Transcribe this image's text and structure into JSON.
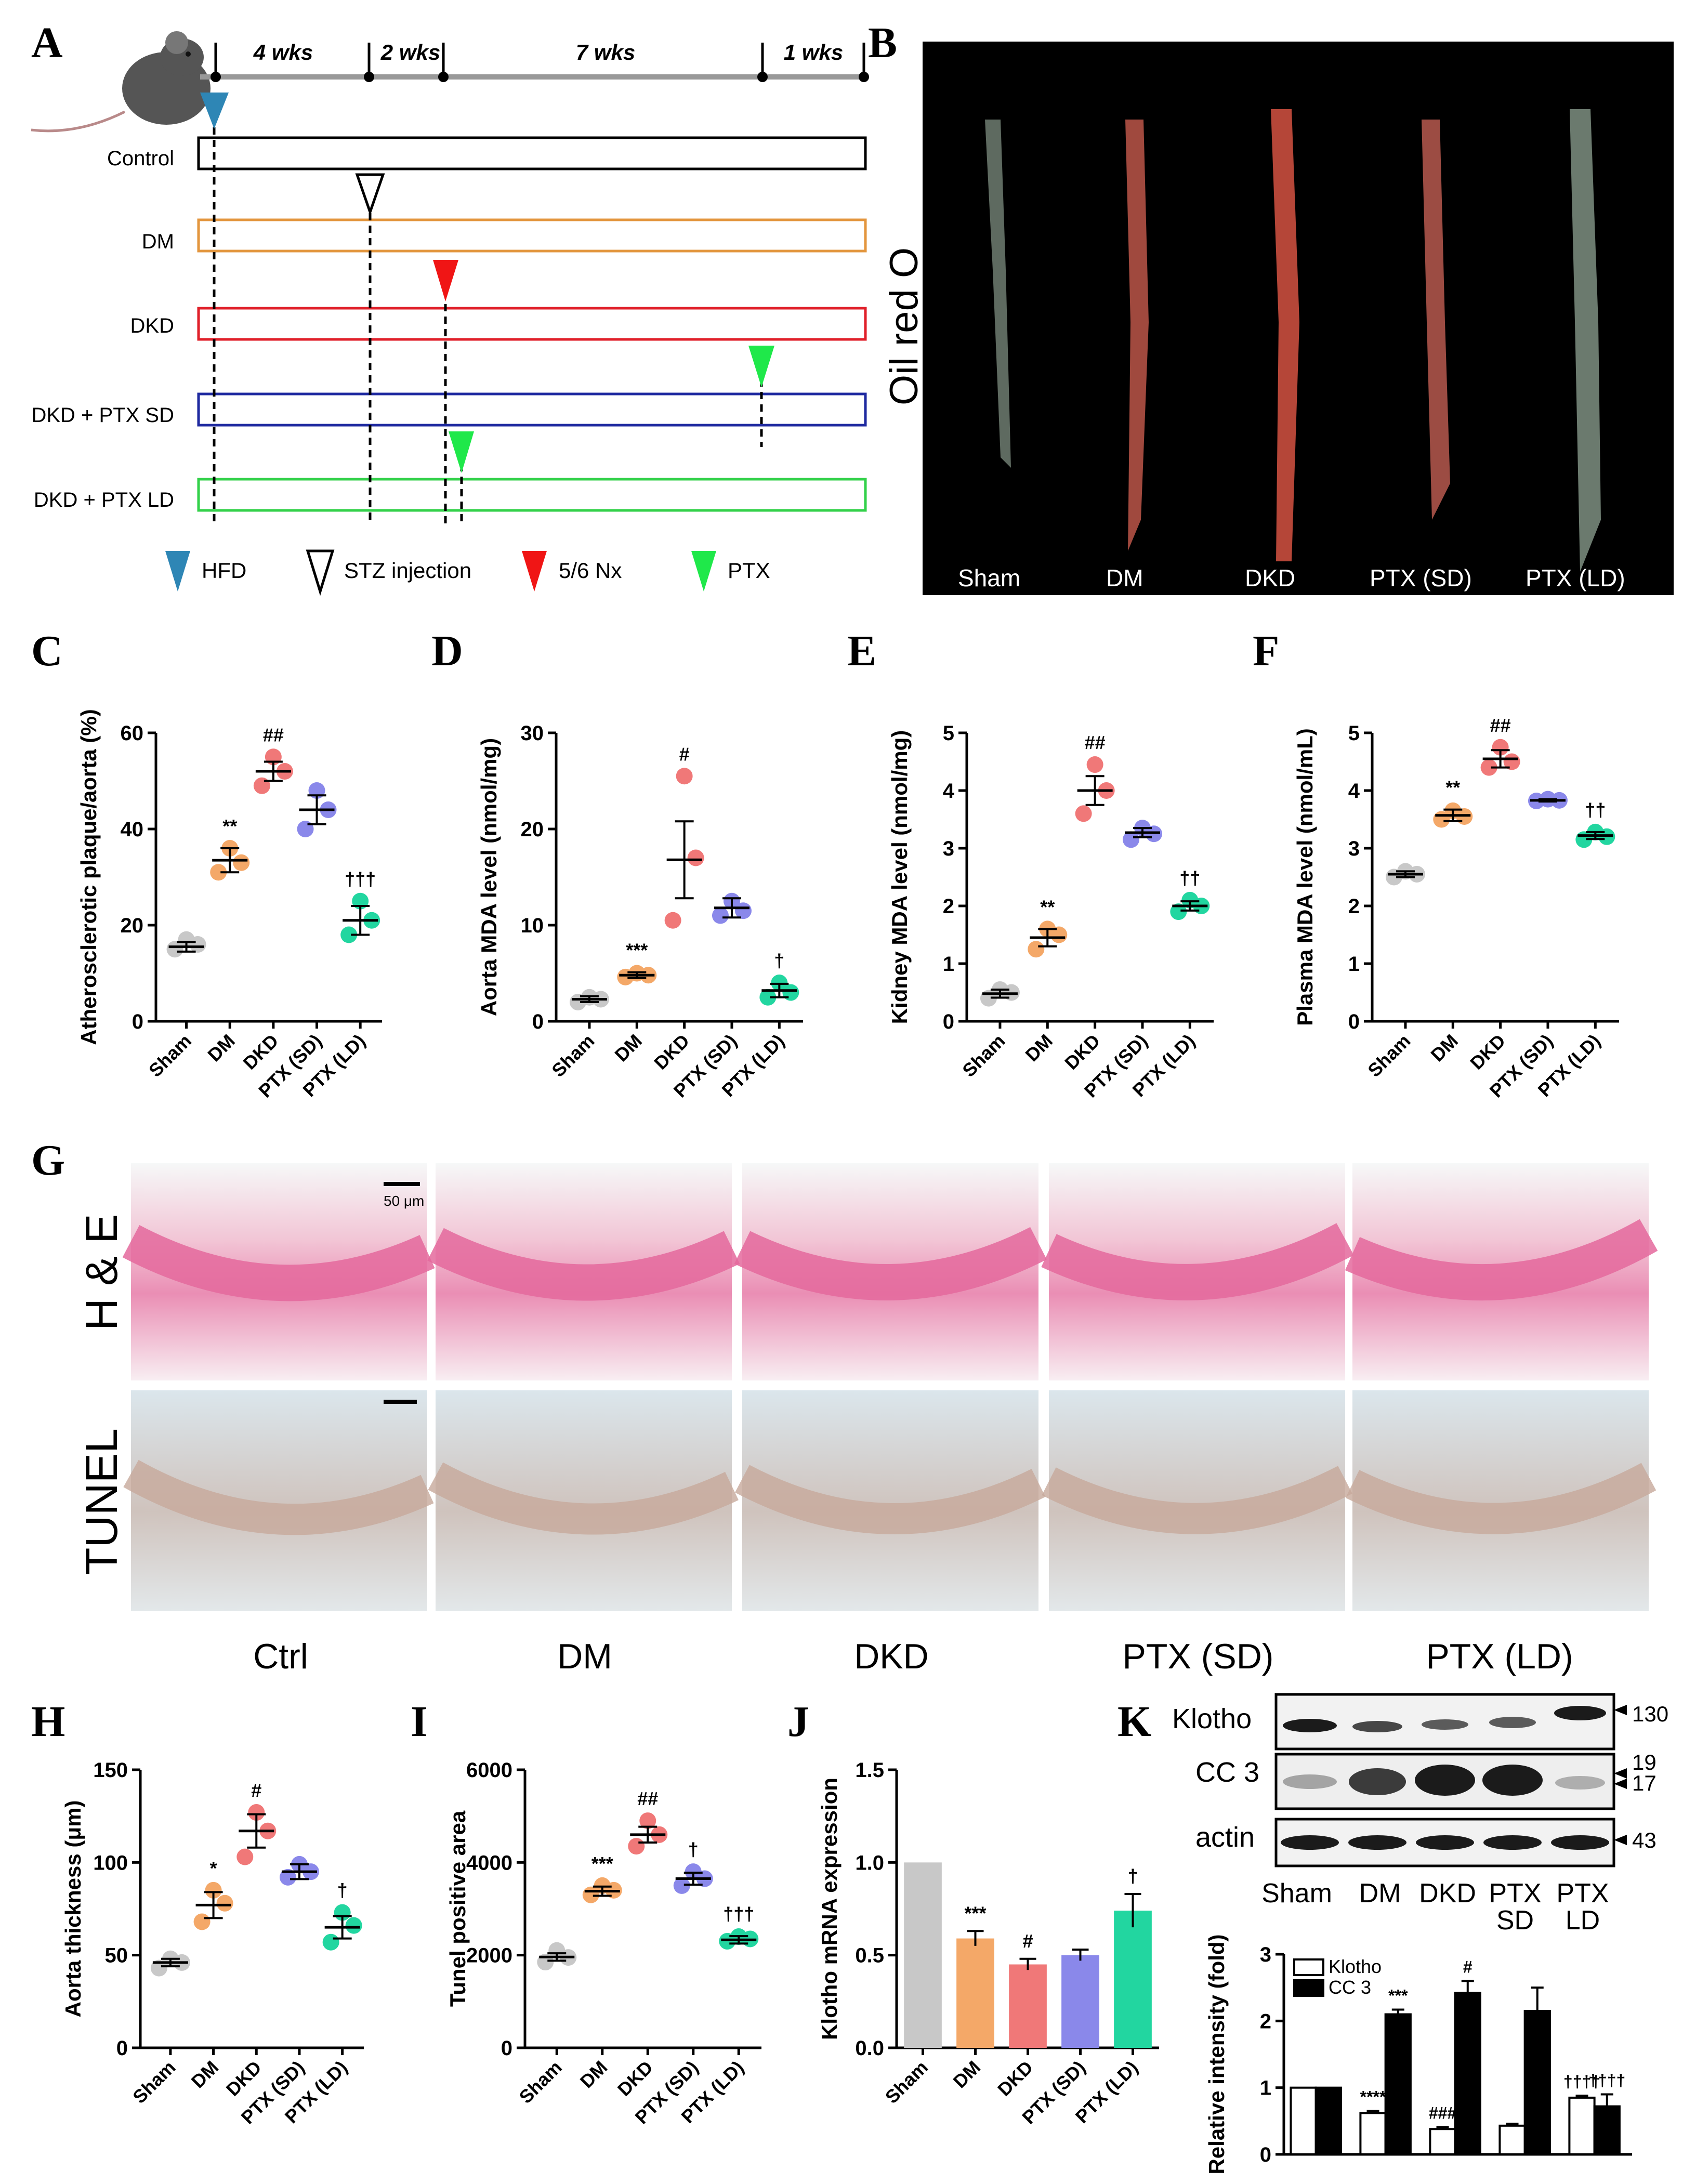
{
  "panels": {
    "A": {
      "letter": "A",
      "timeline": [
        "4 wks",
        "2 wks",
        "7 wks",
        "1 wks"
      ],
      "groups": [
        {
          "name": "Control",
          "color": "#000000"
        },
        {
          "name": "DM",
          "color": "#e3963e"
        },
        {
          "name": "DKD",
          "color": "#e0202a"
        },
        {
          "name": "DKD + PTX SD",
          "color": "#1f2aa0"
        },
        {
          "name": "DKD + PTX LD",
          "color": "#33d14a"
        }
      ],
      "legend": [
        {
          "label": "HFD",
          "color": "#2e86b5",
          "style": "filled"
        },
        {
          "label": "STZ injection",
          "color": "#000000",
          "style": "open"
        },
        {
          "label": "5/6 Nx",
          "color": "#f01515",
          "style": "filled"
        },
        {
          "label": "PTX",
          "color": "#1fe84a",
          "style": "filled"
        }
      ]
    },
    "B": {
      "letter": "B",
      "stain": "Oil red O",
      "labels": [
        "Sham",
        "DM",
        "DKD",
        "PTX (SD)",
        "PTX (LD)"
      ]
    },
    "G": {
      "letter": "G",
      "rows": [
        "H & E",
        "TUNEL"
      ],
      "cols": [
        "Ctrl",
        "DM",
        "DKD",
        "PTX (SD)",
        "PTX (LD)"
      ],
      "scalebar": "50 μm"
    },
    "K": {
      "letter": "K",
      "blot_labels": [
        "Klotho",
        "CC 3",
        "actin"
      ],
      "markers": [
        "130",
        "19",
        "17",
        "43"
      ],
      "lanes": [
        "Sham",
        "DM",
        "DKD",
        "PTX",
        "PTX"
      ],
      "lanes_sub": [
        "",
        "",
        "",
        "SD",
        "LD"
      ]
    }
  },
  "colors": {
    "sham": "#c8c8c8",
    "dm": "#f4a868",
    "dkd": "#f07878",
    "ptx_sd": "#8a88ea",
    "ptx_ld": "#22d6a0"
  },
  "chart_data": [
    {
      "panel": "C",
      "type": "scatter",
      "ylabel": "Atherosclerotic plaque/aorta (%)",
      "categories": [
        "Sham",
        "DM",
        "DKD",
        "PTX (SD)",
        "PTX (LD)"
      ],
      "ylim": [
        0,
        60
      ],
      "yticks": [
        0,
        20,
        40,
        60
      ],
      "series": [
        {
          "points": [
            15,
            16,
            17
          ],
          "mean": 15.5,
          "sem": 1.0
        },
        {
          "points": [
            31,
            33,
            36
          ],
          "mean": 33.5,
          "sem": 2.5
        },
        {
          "points": [
            49,
            52,
            55
          ],
          "mean": 52,
          "sem": 2
        },
        {
          "points": [
            40,
            44,
            48
          ],
          "mean": 44,
          "sem": 3
        },
        {
          "points": [
            18,
            21,
            25
          ],
          "mean": 21,
          "sem": 3
        }
      ],
      "annotations": [
        "",
        "**",
        "##",
        "",
        "†††"
      ]
    },
    {
      "panel": "D",
      "type": "scatter",
      "ylabel": "Aorta MDA level (nmol/mg)",
      "categories": [
        "Sham",
        "DM",
        "DKD",
        "PTX (SD)",
        "PTX (LD)"
      ],
      "ylim": [
        0,
        30
      ],
      "yticks": [
        0,
        10,
        20,
        30
      ],
      "series": [
        {
          "points": [
            2.0,
            2.3,
            2.5
          ],
          "mean": 2.3,
          "sem": 0.3
        },
        {
          "points": [
            4.6,
            4.8,
            5.0
          ],
          "mean": 4.8,
          "sem": 0.3
        },
        {
          "points": [
            10.5,
            17,
            25.5
          ],
          "mean": 16.8,
          "sem": 4.0
        },
        {
          "points": [
            11,
            11.5,
            12.5
          ],
          "mean": 11.8,
          "sem": 1.0
        },
        {
          "points": [
            2.5,
            3,
            4
          ],
          "mean": 3.2,
          "sem": 0.7
        }
      ],
      "annotations": [
        "",
        "***",
        "#",
        "",
        "†"
      ]
    },
    {
      "panel": "E",
      "type": "scatter",
      "ylabel": "Kidney MDA level (nmol/mg)",
      "categories": [
        "Sham",
        "DM",
        "DKD",
        "PTX (SD)",
        "PTX (LD)"
      ],
      "ylim": [
        0,
        5
      ],
      "yticks": [
        0,
        1,
        2,
        3,
        4,
        5
      ],
      "series": [
        {
          "points": [
            0.4,
            0.5,
            0.55
          ],
          "mean": 0.48,
          "sem": 0.07
        },
        {
          "points": [
            1.25,
            1.5,
            1.6
          ],
          "mean": 1.45,
          "sem": 0.15
        },
        {
          "points": [
            3.6,
            4.0,
            4.45
          ],
          "mean": 4.0,
          "sem": 0.25
        },
        {
          "points": [
            3.15,
            3.25,
            3.35
          ],
          "mean": 3.27,
          "sem": 0.08
        },
        {
          "points": [
            1.9,
            2.0,
            2.1
          ],
          "mean": 2.0,
          "sem": 0.08
        }
      ],
      "annotations": [
        "",
        "**",
        "##",
        "",
        "††"
      ]
    },
    {
      "panel": "F",
      "type": "scatter",
      "ylabel": "Plasma MDA level (nmol/mL)",
      "categories": [
        "Sham",
        "DM",
        "DKD",
        "PTX (SD)",
        "PTX (LD)"
      ],
      "ylim": [
        0,
        5
      ],
      "yticks": [
        0,
        1,
        2,
        3,
        4,
        5
      ],
      "series": [
        {
          "points": [
            2.5,
            2.55,
            2.6
          ],
          "mean": 2.55,
          "sem": 0.05
        },
        {
          "points": [
            3.5,
            3.55,
            3.65
          ],
          "mean": 3.57,
          "sem": 0.1
        },
        {
          "points": [
            4.4,
            4.5,
            4.75
          ],
          "mean": 4.55,
          "sem": 0.15
        },
        {
          "points": [
            3.82,
            3.83,
            3.85
          ],
          "mean": 3.83,
          "sem": 0.02
        },
        {
          "points": [
            3.15,
            3.2,
            3.28
          ],
          "mean": 3.22,
          "sem": 0.06
        }
      ],
      "annotations": [
        "",
        "**",
        "##",
        "",
        "††"
      ]
    },
    {
      "panel": "H",
      "type": "scatter",
      "ylabel": "Aorta thickness (μm)",
      "categories": [
        "Sham",
        "DM",
        "DKD",
        "PTX (SD)",
        "PTX (LD)"
      ],
      "ylim": [
        0,
        150
      ],
      "yticks": [
        0,
        50,
        100,
        150
      ],
      "series": [
        {
          "points": [
            43,
            46,
            48
          ],
          "mean": 46,
          "sem": 2
        },
        {
          "points": [
            68,
            78,
            85
          ],
          "mean": 77,
          "sem": 7
        },
        {
          "points": [
            103,
            117,
            127
          ],
          "mean": 117,
          "sem": 9
        },
        {
          "points": [
            92,
            95,
            99
          ],
          "mean": 95,
          "sem": 4
        },
        {
          "points": [
            57,
            66,
            73
          ],
          "mean": 65,
          "sem": 6
        }
      ],
      "annotations": [
        "",
        "*",
        "#",
        "",
        "†"
      ]
    },
    {
      "panel": "I",
      "type": "scatter",
      "ylabel": "Tunel positive area",
      "categories": [
        "Sham",
        "DM",
        "DKD",
        "PTX (SD)",
        "PTX (LD)"
      ],
      "ylim": [
        0,
        6000
      ],
      "yticks": [
        0,
        2000,
        4000,
        6000
      ],
      "series": [
        {
          "points": [
            1850,
            1950,
            2100
          ],
          "mean": 1960,
          "sem": 80
        },
        {
          "points": [
            3300,
            3400,
            3500
          ],
          "mean": 3380,
          "sem": 100
        },
        {
          "points": [
            4350,
            4600,
            4900
          ],
          "mean": 4600,
          "sem": 170
        },
        {
          "points": [
            3500,
            3650,
            3800
          ],
          "mean": 3650,
          "sem": 130
        },
        {
          "points": [
            2300,
            2350,
            2400
          ],
          "mean": 2330,
          "sem": 80
        }
      ],
      "annotations": [
        "",
        "***",
        "##",
        "†",
        "†††"
      ]
    },
    {
      "panel": "J",
      "type": "bar",
      "ylabel": "Klotho mRNA expression",
      "categories": [
        "Sham",
        "DM",
        "DKD",
        "PTX (SD)",
        "PTX (LD)"
      ],
      "values": [
        1.0,
        0.59,
        0.45,
        0.5,
        0.74
      ],
      "errors": [
        0,
        0.04,
        0.03,
        0.03,
        0.09
      ],
      "ylim": [
        0,
        1.5
      ],
      "yticks": [
        0.0,
        0.5,
        1.0,
        1.5
      ],
      "annotations": [
        "",
        "***",
        "#",
        "",
        "†"
      ]
    },
    {
      "panel": "K",
      "type": "bar",
      "ylabel": "Relative intensity  (fold)",
      "categories": [
        "Sham",
        "DM",
        "DKD",
        "PTX SD",
        "PTX LD"
      ],
      "ylim": [
        0,
        3
      ],
      "yticks": [
        0,
        1,
        2,
        3
      ],
      "series": [
        {
          "name": "Klotho",
          "values": [
            1.0,
            0.62,
            0.38,
            0.43,
            0.85
          ],
          "errors": [
            0,
            0.03,
            0.03,
            0.03,
            0.03
          ]
        },
        {
          "name": "CC 3",
          "values": [
            1.0,
            2.1,
            2.42,
            2.15,
            0.72
          ],
          "errors": [
            0,
            0.07,
            0.18,
            0.35,
            0.18
          ]
        }
      ],
      "annotations_klotho": [
        "",
        "****",
        "###",
        "",
        "††††"
      ],
      "annotations_cc3": [
        "",
        "***",
        "#",
        "",
        "††††"
      ]
    }
  ]
}
